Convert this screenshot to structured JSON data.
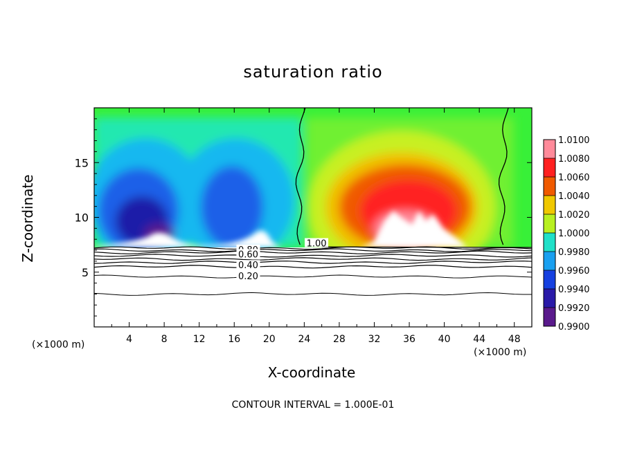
{
  "chart_data": {
    "type": "heatmap",
    "title": "saturation ratio",
    "xlabel": "X-coordinate",
    "ylabel": "Z-coordinate",
    "x_unit_left": "(×1000 m)",
    "x_unit_right": "(×1000 m)",
    "footer": "CONTOUR INTERVAL = 1.000E-01",
    "xlim": [
      0,
      50
    ],
    "ylim": [
      0,
      20
    ],
    "x_ticks": [
      "4",
      "8",
      "12",
      "16",
      "20",
      "24",
      "28",
      "32",
      "36",
      "40",
      "44",
      "48"
    ],
    "y_ticks": [
      "5",
      "10",
      "15"
    ],
    "colorbar": {
      "levels": [
        "0.9900",
        "0.9920",
        "0.9940",
        "0.9960",
        "0.9980",
        "1.0000",
        "1.0020",
        "1.0040",
        "1.0060",
        "1.0080",
        "1.0100"
      ],
      "colors": [
        "#5a1a8c",
        "#2a1aa8",
        "#1640e0",
        "#1aa0f0",
        "#20e0c8",
        "#20f040",
        "#b8f020",
        "#f0c800",
        "#f05a00",
        "#ff2020",
        "#ff8a9a"
      ]
    },
    "contour_labels": [
      {
        "text": "1.00",
        "x": 25.4,
        "y": 7.6
      },
      {
        "text": "0.80",
        "x": 17.6,
        "y": 7.0
      },
      {
        "text": "0.60",
        "x": 17.6,
        "y": 6.6
      },
      {
        "text": "0.40",
        "x": 17.6,
        "y": 5.6
      },
      {
        "text": "0.20",
        "x": 17.6,
        "y": 4.6
      }
    ],
    "contour_levels_below": [
      7.2,
      7.0,
      6.8,
      6.5,
      6.2,
      5.9,
      5.5,
      4.6,
      3.0
    ],
    "boundary_1_00_left_x": 23.6,
    "boundary_1_00_right_x": 46.8
  }
}
